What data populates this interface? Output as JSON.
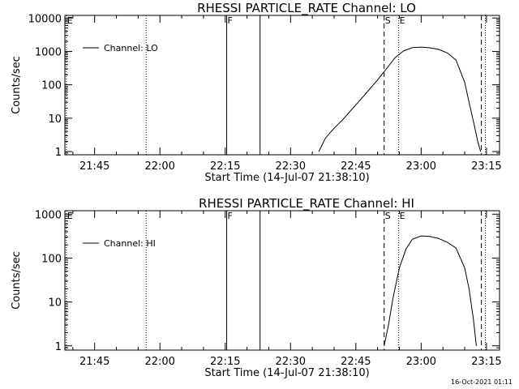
{
  "chart_data": [
    {
      "type": "line",
      "title": "RHESSI PARTICLE_RATE Channel: LO",
      "xlabel": "Start Time (14-Jul-07 21:38:10)",
      "ylabel": "Counts/sec",
      "y_scale": "log",
      "ylim": [
        0.8,
        12000
      ],
      "xlim": [
        "21:38:10",
        "23:18:00"
      ],
      "x_tick_labels": [
        "21:45",
        "22:00",
        "22:15",
        "22:30",
        "22:45",
        "23:00",
        "23:15"
      ],
      "y_tick_labels": [
        "1",
        "10",
        "100",
        "1000",
        "10000"
      ],
      "y_tick_values": [
        1,
        10,
        100,
        1000,
        10000
      ],
      "legend": {
        "entries": [
          "Channel: LO"
        ],
        "placement": "top-left"
      },
      "markers": [
        {
          "time": "21:38:30",
          "style": "dotted",
          "label": "E"
        },
        {
          "time": "21:56:50",
          "style": "dotted",
          "label": ""
        },
        {
          "time": "22:15:20",
          "style": "solid",
          "label": "F"
        },
        {
          "time": "22:23:00",
          "style": "solid",
          "label": ""
        },
        {
          "time": "22:51:30",
          "style": "dashed",
          "label": "S"
        },
        {
          "time": "22:54:50",
          "style": "dotted",
          "label": "E"
        },
        {
          "time": "23:13:50",
          "style": "dashed",
          "label": ""
        },
        {
          "time": "23:14:45",
          "style": "dotted",
          "label": ""
        }
      ],
      "series": [
        {
          "name": "Channel: LO",
          "x": [
            "22:36:30",
            "22:38:00",
            "22:40:00",
            "22:42:00",
            "22:44:00",
            "22:46:00",
            "22:48:00",
            "22:50:00",
            "22:52:00",
            "22:54:00",
            "22:56:00",
            "22:58:00",
            "23:00:00",
            "23:02:00",
            "23:04:00",
            "23:06:00",
            "23:08:00",
            "23:10:00",
            "23:11:00",
            "23:12:00",
            "23:13:00",
            "23:13:40"
          ],
          "values": [
            1,
            2.5,
            5,
            9,
            18,
            35,
            70,
            140,
            300,
            650,
            1050,
            1300,
            1350,
            1280,
            1150,
            900,
            550,
            120,
            30,
            8,
            2,
            1
          ]
        }
      ]
    },
    {
      "type": "line",
      "title": "RHESSI PARTICLE_RATE Channel: HI",
      "xlabel": "Start Time (14-Jul-07 21:38:10)",
      "ylabel": "Counts/sec",
      "y_scale": "log",
      "ylim": [
        0.8,
        1200
      ],
      "xlim": [
        "21:38:10",
        "23:18:00"
      ],
      "x_tick_labels": [
        "21:45",
        "22:00",
        "22:15",
        "22:30",
        "22:45",
        "23:00",
        "23:15"
      ],
      "y_tick_labels": [
        "1",
        "10",
        "100",
        "1000"
      ],
      "y_tick_values": [
        1,
        10,
        100,
        1000
      ],
      "legend": {
        "entries": [
          "Channel: HI"
        ],
        "placement": "top-left"
      },
      "markers": [
        {
          "time": "21:38:30",
          "style": "dotted",
          "label": "E"
        },
        {
          "time": "21:56:50",
          "style": "dotted",
          "label": ""
        },
        {
          "time": "22:15:20",
          "style": "solid",
          "label": "F"
        },
        {
          "time": "22:23:00",
          "style": "solid",
          "label": ""
        },
        {
          "time": "22:51:30",
          "style": "dashed",
          "label": "S"
        },
        {
          "time": "22:54:50",
          "style": "dotted",
          "label": "E"
        },
        {
          "time": "23:13:50",
          "style": "dashed",
          "label": ""
        },
        {
          "time": "23:14:45",
          "style": "dotted",
          "label": ""
        }
      ],
      "series": [
        {
          "name": "Channel: HI",
          "x": [
            "22:51:30",
            "22:52:30",
            "22:53:30",
            "22:55:00",
            "22:56:30",
            "22:58:00",
            "23:00:00",
            "23:02:00",
            "23:04:00",
            "23:06:00",
            "23:08:00",
            "23:10:00",
            "23:11:00",
            "23:12:00",
            "23:12:40"
          ],
          "values": [
            1,
            3,
            12,
            60,
            160,
            270,
            320,
            310,
            280,
            230,
            170,
            60,
            20,
            4,
            1
          ]
        }
      ]
    }
  ],
  "footer": {
    "timestamp": "16-Oct-2021 01:11"
  }
}
